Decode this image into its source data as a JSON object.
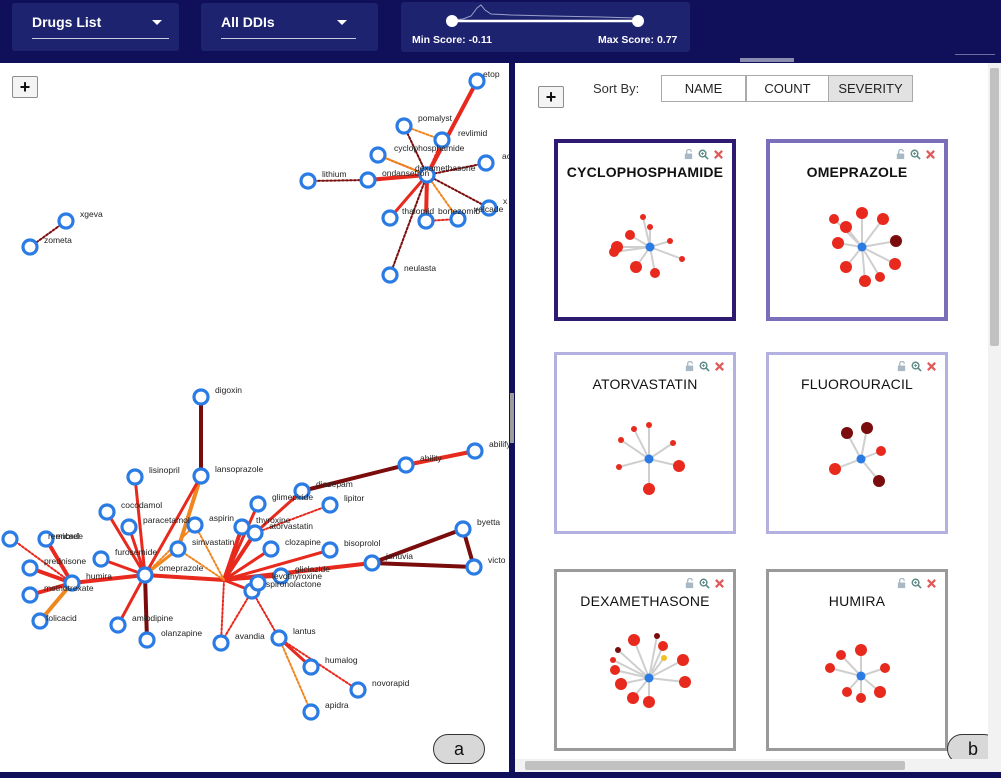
{
  "toolbar": {
    "drugs_select": "Drugs List",
    "ddi_select": "All DDIs",
    "min_score": "Min Score: -0.11",
    "max_score": "Max Score: 0.77"
  },
  "network_panel": {
    "label": "a",
    "zoom_label": "+",
    "nodes": [
      "etop",
      "pomalyst",
      "revlimid",
      "cyclophosphamide",
      "ac",
      "dexamethasone",
      "ondansetron",
      "lithium",
      "thalomid",
      "bortezomib",
      "velcade",
      "x",
      "xgeva",
      "zometa",
      "neulasta",
      "digoxin",
      "abilify",
      "ability",
      "lansoprazole",
      "lisinopril",
      "diazepam",
      "cocodamol",
      "glimepiride",
      "lipitor",
      "aspirin",
      "paracetamol",
      "thyroxine",
      "atorvastatin",
      "byetta",
      "remicade",
      "enbrel",
      "clozapine",
      "bisoprolol",
      "furosemide",
      "simvastatin",
      "januvia",
      "victo",
      "prednisone",
      "humira",
      "omeprazole",
      "gliclazide",
      "spironolactone",
      "levothyroxine",
      "methotrexate",
      "folicacid",
      "amlodipine",
      "olanzapine",
      "avandia",
      "lantus",
      "humalog",
      "novorapid",
      "apidra"
    ]
  },
  "cards_panel": {
    "label": "b",
    "zoom_label": "+",
    "sort_by": "Sort By:",
    "sort_options": [
      "NAME",
      "COUNT",
      "SEVERITY"
    ],
    "active_sort": "SEVERITY",
    "cards": [
      {
        "title": "CYCLOPHOSPHAMIDE",
        "bold": true,
        "border": "#2f1a72"
      },
      {
        "title": "OMEPRAZOLE",
        "bold": true,
        "border": "#7a6fb8"
      },
      {
        "title": "ATORVASTATIN",
        "bold": false,
        "border": "#b3b1df"
      },
      {
        "title": "FLUOROURACIL",
        "bold": false,
        "border": "#b3b1df"
      },
      {
        "title": "DEXAMETHASONE",
        "bold": false,
        "border": "#9a9a9a"
      },
      {
        "title": "HUMIRA",
        "bold": false,
        "border": "#9a9a9a"
      }
    ]
  },
  "colors": {
    "background": "#0f1059",
    "node_stroke": "#2a7be4",
    "edge_red": "#e8291d",
    "edge_dark": "#7b0c0c",
    "edge_orange": "#f0861e"
  }
}
